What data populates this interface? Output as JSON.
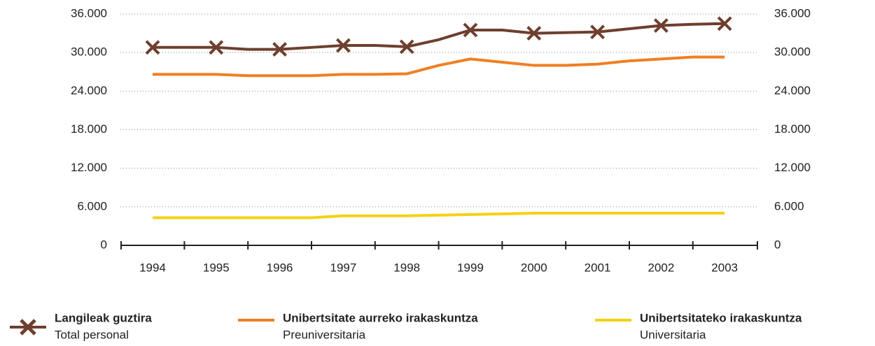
{
  "chart_data": {
    "type": "line",
    "categories": [
      "1994",
      null,
      "1995",
      null,
      "1996",
      null,
      "1997",
      null,
      "1998",
      null,
      "1999",
      null,
      "2000",
      null,
      "2001",
      null,
      "2002",
      null,
      "2003"
    ],
    "series": [
      {
        "name": "Langileak guztira",
        "subtitle": "Total personal",
        "color": "#6e3f2e",
        "marker": "x",
        "values": [
          30800,
          30800,
          30800,
          30500,
          30500,
          30800,
          31100,
          31100,
          30900,
          32000,
          33500,
          33500,
          33000,
          33100,
          33200,
          33700,
          34200,
          34400,
          34500
        ]
      },
      {
        "name": "Unibertsitate aurreko irakaskuntza",
        "subtitle": "Preuniversitaria",
        "color": "#f07f22",
        "values": [
          26600,
          26600,
          26600,
          26400,
          26400,
          26400,
          26600,
          26600,
          26700,
          28000,
          29000,
          28500,
          28000,
          28000,
          28200,
          28700,
          29000,
          29300,
          29300
        ]
      },
      {
        "name": "Unibertsitateko irakaskuntza",
        "subtitle": "Universitaria",
        "color": "#f5d114",
        "values": [
          4300,
          4300,
          4300,
          4300,
          4300,
          4300,
          4600,
          4600,
          4600,
          4700,
          4800,
          4900,
          5000,
          5000,
          5000,
          5000,
          5000,
          5000,
          5000
        ]
      }
    ],
    "ylim": [
      0,
      36000
    ],
    "yticks": [
      0,
      {
        "value": 6000,
        "label": "6.000"
      },
      {
        "value": 12000,
        "label": "12.000"
      },
      {
        "value": 18000,
        "label": "18.000"
      },
      {
        "value": 24000,
        "label": "24.000"
      },
      {
        "value": 30000,
        "label": "30.000"
      },
      {
        "value": 36000,
        "label": "36.000"
      }
    ],
    "y2lim": [
      0,
      36000
    ],
    "y2ticks": [
      0,
      {
        "value": 6000,
        "label": "6.000"
      },
      {
        "value": 12000,
        "label": "12.000"
      },
      {
        "value": 18000,
        "label": "18.000"
      },
      {
        "value": 24000,
        "label": "24.000"
      },
      {
        "value": 30000,
        "label": "30.000"
      },
      {
        "value": 36000,
        "label": "36.000"
      }
    ],
    "grid": true,
    "legend": "bottom"
  }
}
